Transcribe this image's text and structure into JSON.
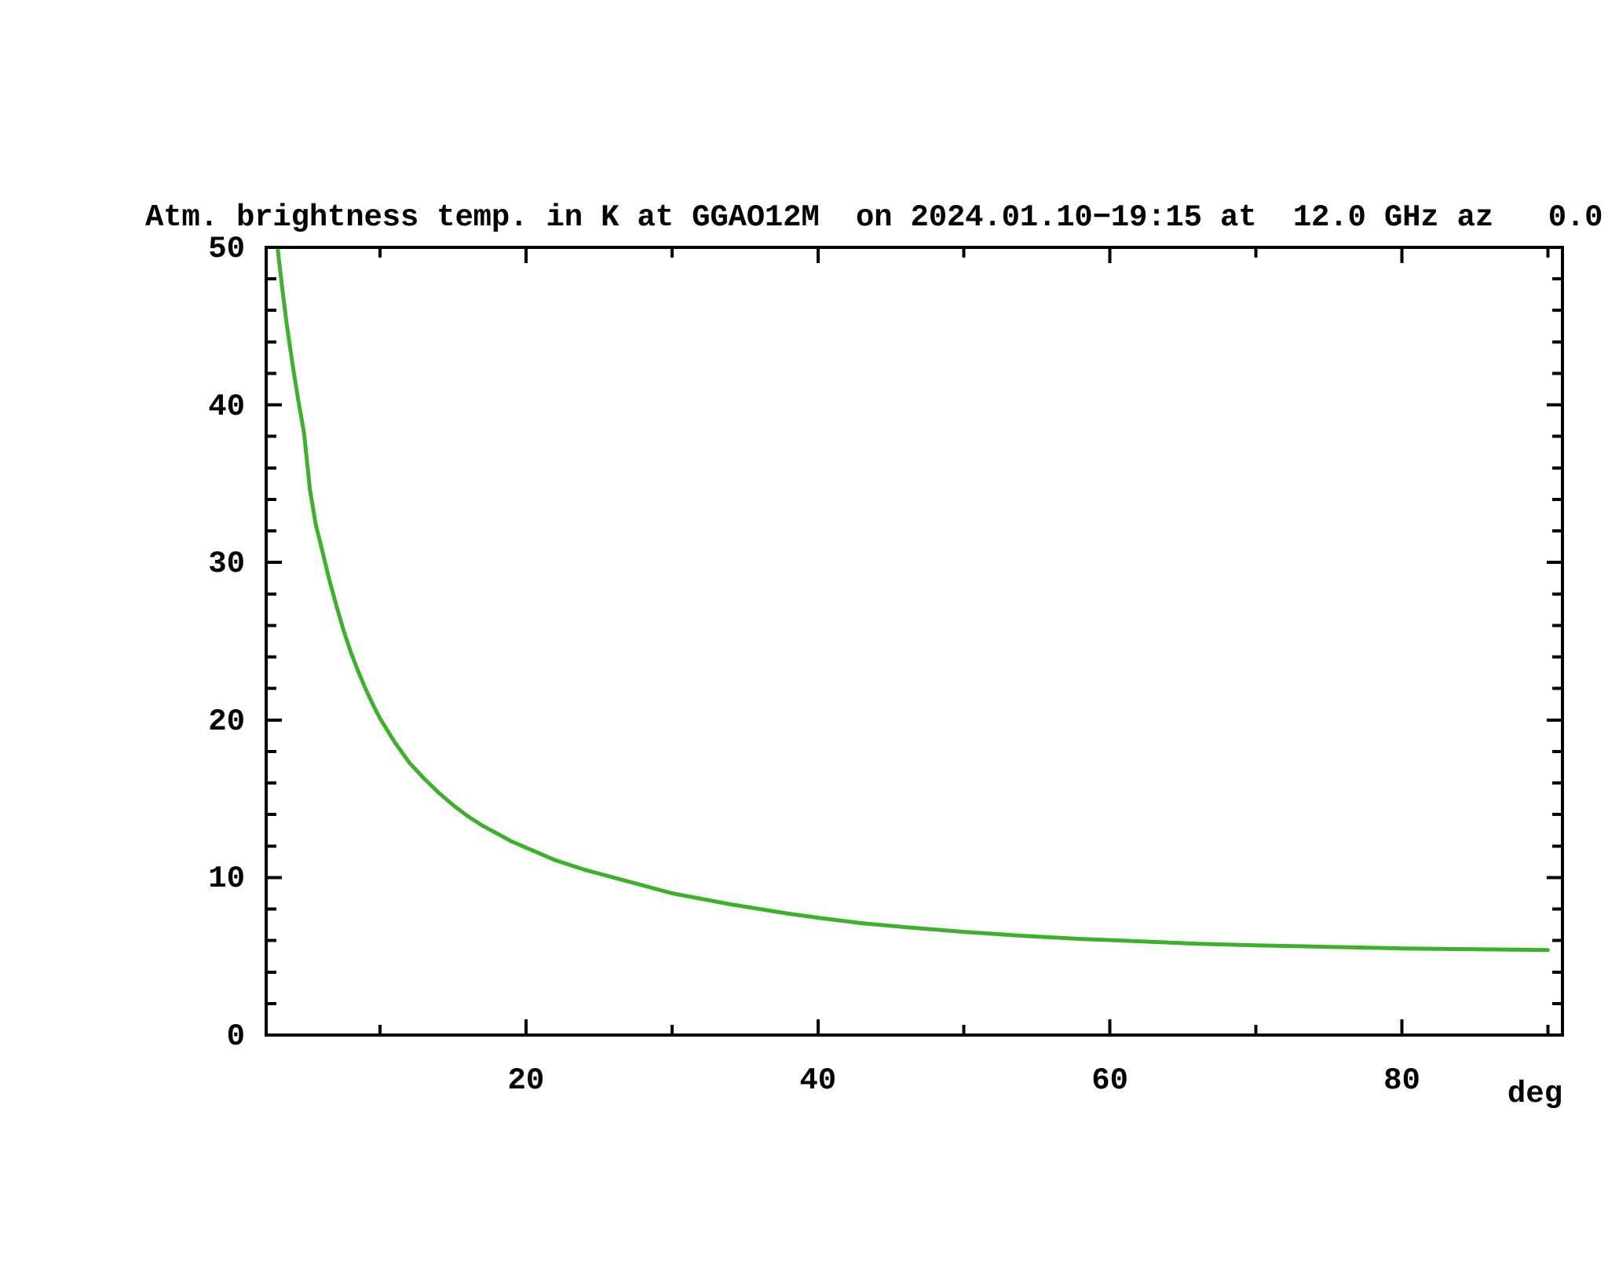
{
  "title": "Atm. brightness temp. in K at GGAO12M  on 2024.01.10−19:15 at  12.0 GHz az   0.0",
  "x_axis": {
    "unit_label": "deg",
    "major_ticks": [
      20,
      40,
      60,
      80
    ],
    "minor_ticks": [
      10,
      30,
      50,
      70,
      90
    ],
    "range": [
      2.2,
      91.0
    ]
  },
  "y_axis": {
    "major_ticks": [
      0,
      10,
      20,
      30,
      40,
      50
    ],
    "minor_step": 2,
    "range": [
      0,
      50
    ]
  },
  "colors": {
    "curve": "#3cb22a",
    "axis": "#000000",
    "background": "#ffffff"
  },
  "chart_data": {
    "type": "line",
    "title": "Atm. brightness temp. in K at GGAO12M  on 2024.01.10−19:15 at  12.0 GHz az   0.0",
    "xlabel": "deg",
    "ylabel": "",
    "xlim": [
      2.2,
      91.0
    ],
    "ylim": [
      0,
      50
    ],
    "grid": false,
    "legend": "none",
    "series": [
      {
        "name": "atmospheric brightness temperature",
        "color": "#3cb22a",
        "points": [
          [
            3.0,
            49.8
          ],
          [
            3.3,
            47.4
          ],
          [
            3.6,
            45.2
          ],
          [
            4.0,
            42.6
          ],
          [
            4.4,
            40.3
          ],
          [
            4.8,
            38.2
          ],
          [
            5.2,
            34.6
          ],
          [
            5.6,
            32.4
          ],
          [
            6.0,
            30.9
          ],
          [
            6.5,
            29.0
          ],
          [
            7.0,
            27.3
          ],
          [
            7.5,
            25.7
          ],
          [
            8.0,
            24.3
          ],
          [
            8.5,
            23.1
          ],
          [
            9.0,
            22.0
          ],
          [
            9.5,
            21.0
          ],
          [
            10,
            20.1
          ],
          [
            11,
            18.6
          ],
          [
            12,
            17.3
          ],
          [
            13,
            16.3
          ],
          [
            14,
            15.4
          ],
          [
            15,
            14.6
          ],
          [
            16,
            13.9
          ],
          [
            17,
            13.3
          ],
          [
            18,
            12.8
          ],
          [
            19,
            12.3
          ],
          [
            20,
            11.9
          ],
          [
            21,
            11.5
          ],
          [
            22,
            11.1
          ],
          [
            23,
            10.8
          ],
          [
            24,
            10.5
          ],
          [
            26,
            10.0
          ],
          [
            28,
            9.5
          ],
          [
            30,
            9.0
          ],
          [
            32,
            8.65
          ],
          [
            34,
            8.3
          ],
          [
            36,
            8.0
          ],
          [
            38,
            7.7
          ],
          [
            40,
            7.45
          ],
          [
            43,
            7.1
          ],
          [
            46,
            6.85
          ],
          [
            50,
            6.55
          ],
          [
            54,
            6.3
          ],
          [
            58,
            6.1
          ],
          [
            62,
            5.95
          ],
          [
            66,
            5.8
          ],
          [
            70,
            5.7
          ],
          [
            75,
            5.6
          ],
          [
            80,
            5.5
          ],
          [
            85,
            5.45
          ],
          [
            90,
            5.4
          ]
        ]
      }
    ]
  }
}
